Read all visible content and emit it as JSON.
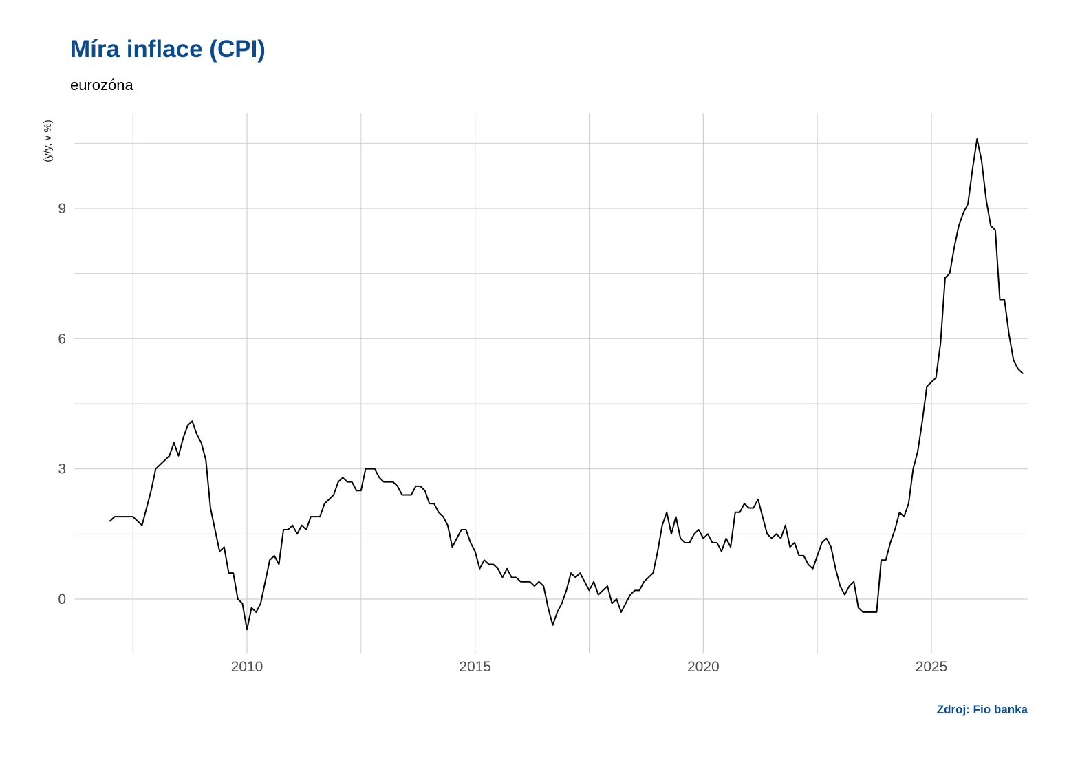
{
  "header": {
    "title": "Míra inflace (CPI)",
    "subtitle": "eurozóna",
    "caption": "Zdroj: Fio banka"
  },
  "colors": {
    "title": "#0b4a8b",
    "line": "#000000",
    "grid": "#d0d0d0"
  },
  "chart_data": {
    "type": "line",
    "title": "Míra inflace (CPI)",
    "subtitle": "eurozóna",
    "ylabel": "(y/y, v %)",
    "xlabel": "",
    "xlim": [
      2006.2,
      2027.0
    ],
    "ylim": [
      -1.25,
      11.0
    ],
    "x_ticks": [
      2010,
      2015,
      2020,
      2025
    ],
    "y_ticks": [
      0,
      3,
      6,
      9
    ],
    "grid": true,
    "series": [
      {
        "values": [
          [
            2007.0,
            1.8
          ],
          [
            2007.1,
            1.9
          ],
          [
            2007.2,
            1.9
          ],
          [
            2007.3,
            1.9
          ],
          [
            2007.4,
            1.9
          ],
          [
            2007.5,
            1.9
          ],
          [
            2007.6,
            1.8
          ],
          [
            2007.7,
            1.7
          ],
          [
            2007.8,
            2.1
          ],
          [
            2007.9,
            2.5
          ],
          [
            2008.0,
            3.0
          ],
          [
            2008.1,
            3.1
          ],
          [
            2008.2,
            3.2
          ],
          [
            2008.3,
            3.3
          ],
          [
            2008.4,
            3.6
          ],
          [
            2008.5,
            3.3
          ],
          [
            2008.6,
            3.7
          ],
          [
            2008.7,
            4.0
          ],
          [
            2008.8,
            4.1
          ],
          [
            2008.9,
            3.8
          ],
          [
            2009.0,
            3.6
          ],
          [
            2009.1,
            3.2
          ],
          [
            2009.2,
            2.1
          ],
          [
            2009.3,
            1.6
          ],
          [
            2009.4,
            1.1
          ],
          [
            2009.5,
            1.2
          ],
          [
            2009.6,
            0.6
          ],
          [
            2009.7,
            0.6
          ],
          [
            2009.8,
            0.0
          ],
          [
            2009.9,
            -0.1
          ],
          [
            2010.0,
            -0.7
          ],
          [
            2010.1,
            -0.2
          ],
          [
            2010.2,
            -0.3
          ],
          [
            2010.3,
            -0.1
          ],
          [
            2010.4,
            0.4
          ],
          [
            2010.5,
            0.9
          ],
          [
            2010.6,
            1.0
          ],
          [
            2010.7,
            0.8
          ],
          [
            2010.8,
            1.6
          ],
          [
            2010.9,
            1.6
          ],
          [
            2011.0,
            1.7
          ],
          [
            2011.1,
            1.5
          ],
          [
            2011.2,
            1.7
          ],
          [
            2011.3,
            1.6
          ],
          [
            2011.4,
            1.9
          ],
          [
            2011.5,
            1.9
          ],
          [
            2011.6,
            1.9
          ],
          [
            2011.7,
            2.2
          ],
          [
            2011.8,
            2.3
          ],
          [
            2011.9,
            2.4
          ],
          [
            2012.0,
            2.7
          ],
          [
            2012.1,
            2.8
          ],
          [
            2012.2,
            2.7
          ],
          [
            2012.3,
            2.7
          ],
          [
            2012.4,
            2.5
          ],
          [
            2012.5,
            2.5
          ],
          [
            2012.6,
            3.0
          ],
          [
            2012.7,
            3.0
          ],
          [
            2012.8,
            3.0
          ],
          [
            2012.9,
            2.8
          ],
          [
            2013.0,
            2.7
          ],
          [
            2013.1,
            2.7
          ],
          [
            2013.2,
            2.7
          ],
          [
            2013.3,
            2.6
          ],
          [
            2013.4,
            2.4
          ],
          [
            2013.5,
            2.4
          ],
          [
            2013.6,
            2.4
          ],
          [
            2013.7,
            2.6
          ],
          [
            2013.8,
            2.6
          ],
          [
            2013.9,
            2.5
          ],
          [
            2014.0,
            2.2
          ],
          [
            2014.1,
            2.2
          ],
          [
            2014.2,
            2.0
          ],
          [
            2014.3,
            1.9
          ],
          [
            2014.4,
            1.7
          ],
          [
            2014.5,
            1.2
          ],
          [
            2014.6,
            1.4
          ],
          [
            2014.7,
            1.6
          ],
          [
            2014.8,
            1.6
          ],
          [
            2014.9,
            1.3
          ],
          [
            2015.0,
            1.1
          ],
          [
            2015.1,
            0.7
          ],
          [
            2015.2,
            0.9
          ],
          [
            2015.3,
            0.8
          ],
          [
            2015.4,
            0.8
          ],
          [
            2015.5,
            0.7
          ],
          [
            2015.6,
            0.5
          ],
          [
            2015.7,
            0.7
          ],
          [
            2015.8,
            0.5
          ],
          [
            2015.9,
            0.5
          ],
          [
            2016.0,
            0.4
          ],
          [
            2016.1,
            0.4
          ],
          [
            2016.2,
            0.4
          ],
          [
            2016.3,
            0.3
          ],
          [
            2016.4,
            0.4
          ],
          [
            2016.5,
            0.3
          ],
          [
            2016.6,
            -0.2
          ],
          [
            2016.7,
            -0.6
          ],
          [
            2016.8,
            -0.3
          ],
          [
            2016.9,
            -0.1
          ],
          [
            2017.0,
            0.2
          ],
          [
            2017.1,
            0.6
          ],
          [
            2017.2,
            0.5
          ],
          [
            2017.3,
            0.6
          ],
          [
            2017.4,
            0.4
          ],
          [
            2017.5,
            0.2
          ],
          [
            2017.6,
            0.4
          ],
          [
            2017.7,
            0.1
          ],
          [
            2017.8,
            0.2
          ],
          [
            2017.9,
            0.3
          ],
          [
            2018.0,
            -0.1
          ],
          [
            2018.1,
            0.0
          ],
          [
            2018.2,
            -0.3
          ],
          [
            2018.3,
            -0.1
          ],
          [
            2018.4,
            0.1
          ],
          [
            2018.5,
            0.2
          ],
          [
            2018.6,
            0.2
          ],
          [
            2018.7,
            0.4
          ],
          [
            2018.8,
            0.5
          ],
          [
            2018.9,
            0.6
          ],
          [
            2019.0,
            1.1
          ],
          [
            2019.1,
            1.7
          ],
          [
            2019.2,
            2.0
          ],
          [
            2019.3,
            1.5
          ],
          [
            2019.4,
            1.9
          ],
          [
            2019.5,
            1.4
          ],
          [
            2019.6,
            1.3
          ],
          [
            2019.7,
            1.3
          ],
          [
            2019.8,
            1.5
          ],
          [
            2019.9,
            1.6
          ],
          [
            2020.0,
            1.4
          ],
          [
            2020.1,
            1.5
          ],
          [
            2020.2,
            1.3
          ],
          [
            2020.3,
            1.3
          ],
          [
            2020.4,
            1.1
          ],
          [
            2020.5,
            1.4
          ],
          [
            2020.6,
            1.2
          ],
          [
            2020.7,
            2.0
          ],
          [
            2020.8,
            2.0
          ],
          [
            2020.9,
            2.2
          ],
          [
            2021.0,
            2.1
          ],
          [
            2021.1,
            2.1
          ],
          [
            2021.2,
            2.3
          ],
          [
            2021.3,
            1.9
          ],
          [
            2021.4,
            1.5
          ],
          [
            2021.5,
            1.4
          ],
          [
            2021.6,
            1.5
          ],
          [
            2021.7,
            1.4
          ],
          [
            2021.8,
            1.7
          ],
          [
            2021.9,
            1.2
          ],
          [
            2022.0,
            1.3
          ],
          [
            2022.1,
            1.0
          ],
          [
            2022.2,
            1.0
          ],
          [
            2022.3,
            0.8
          ],
          [
            2022.4,
            0.7
          ],
          [
            2022.5,
            1.0
          ],
          [
            2022.6,
            1.3
          ],
          [
            2022.7,
            1.4
          ],
          [
            2022.8,
            1.2
          ],
          [
            2022.9,
            0.7
          ],
          [
            2023.0,
            0.3
          ],
          [
            2023.1,
            0.1
          ],
          [
            2023.2,
            0.3
          ],
          [
            2023.3,
            0.4
          ],
          [
            2023.4,
            -0.2
          ],
          [
            2023.5,
            -0.3
          ],
          [
            2023.6,
            -0.3
          ],
          [
            2023.7,
            -0.3
          ],
          [
            2023.8,
            -0.3
          ],
          [
            2023.9,
            0.9
          ],
          [
            2024.0,
            0.9
          ],
          [
            2024.1,
            1.3
          ],
          [
            2024.2,
            1.6
          ],
          [
            2024.3,
            2.0
          ],
          [
            2024.4,
            1.9
          ],
          [
            2024.5,
            2.2
          ],
          [
            2024.6,
            3.0
          ],
          [
            2024.7,
            3.4
          ],
          [
            2024.8,
            4.1
          ],
          [
            2024.9,
            4.9
          ],
          [
            2025.0,
            5.0
          ],
          [
            2025.1,
            5.1
          ],
          [
            2025.2,
            5.9
          ],
          [
            2025.3,
            7.4
          ],
          [
            2025.4,
            7.5
          ],
          [
            2025.5,
            8.1
          ],
          [
            2025.6,
            8.6
          ],
          [
            2025.7,
            8.9
          ],
          [
            2025.8,
            9.1
          ],
          [
            2025.9,
            9.9
          ],
          [
            2026.0,
            10.6
          ],
          [
            2026.1,
            10.1
          ],
          [
            2026.2,
            9.2
          ],
          [
            2026.3,
            8.6
          ],
          [
            2026.4,
            8.5
          ],
          [
            2026.5,
            6.9
          ],
          [
            2026.6,
            6.9
          ],
          [
            2026.7,
            6.1
          ],
          [
            2026.8,
            5.5
          ],
          [
            2026.9,
            5.3
          ],
          [
            2027.0,
            5.2
          ]
        ]
      }
    ]
  }
}
